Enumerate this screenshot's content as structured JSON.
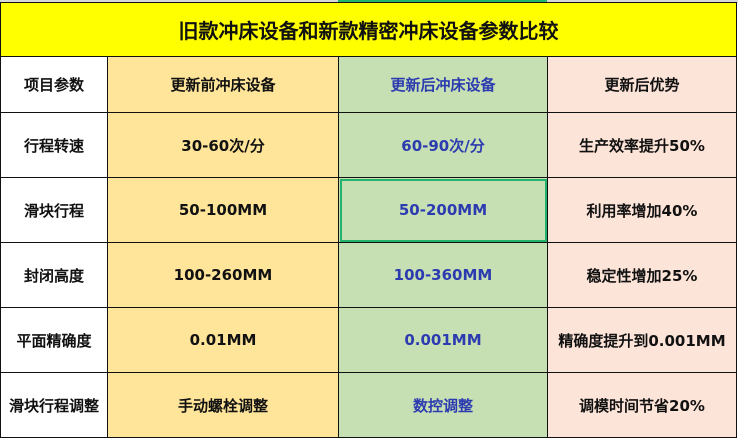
{
  "title": "旧款冲床设备和新款精密冲床设备参数比较",
  "headers": [
    "项目参数",
    "更新前冲床设备",
    "更新后冲床设备",
    "更新后优势"
  ],
  "rows": [
    [
      "行程转速",
      "30-60次/分",
      "60-90次/分",
      "生产效率提升50%"
    ],
    [
      "滑块行程",
      "50-100MM",
      "50-200MM",
      "利用率增加40%"
    ],
    [
      "封闭高度",
      "100-260MM",
      "100-360MM",
      "稳定性增加25%"
    ],
    [
      "平面精确度",
      "0.01MM",
      "0.001MM",
      "精确度提升到0.001MM"
    ],
    [
      "滑块行程调整",
      "手动螺栓调整",
      "数控调整",
      "调模时间节省20%"
    ]
  ],
  "selected_cell": "C4",
  "colors": {
    "title_bg": "#ffff00",
    "old_col": "#ffe599",
    "new_col": "#c6e0b4",
    "adv_col": "#fde4d8",
    "new_text": "#2d3bb0",
    "selection": "#21b36b"
  }
}
